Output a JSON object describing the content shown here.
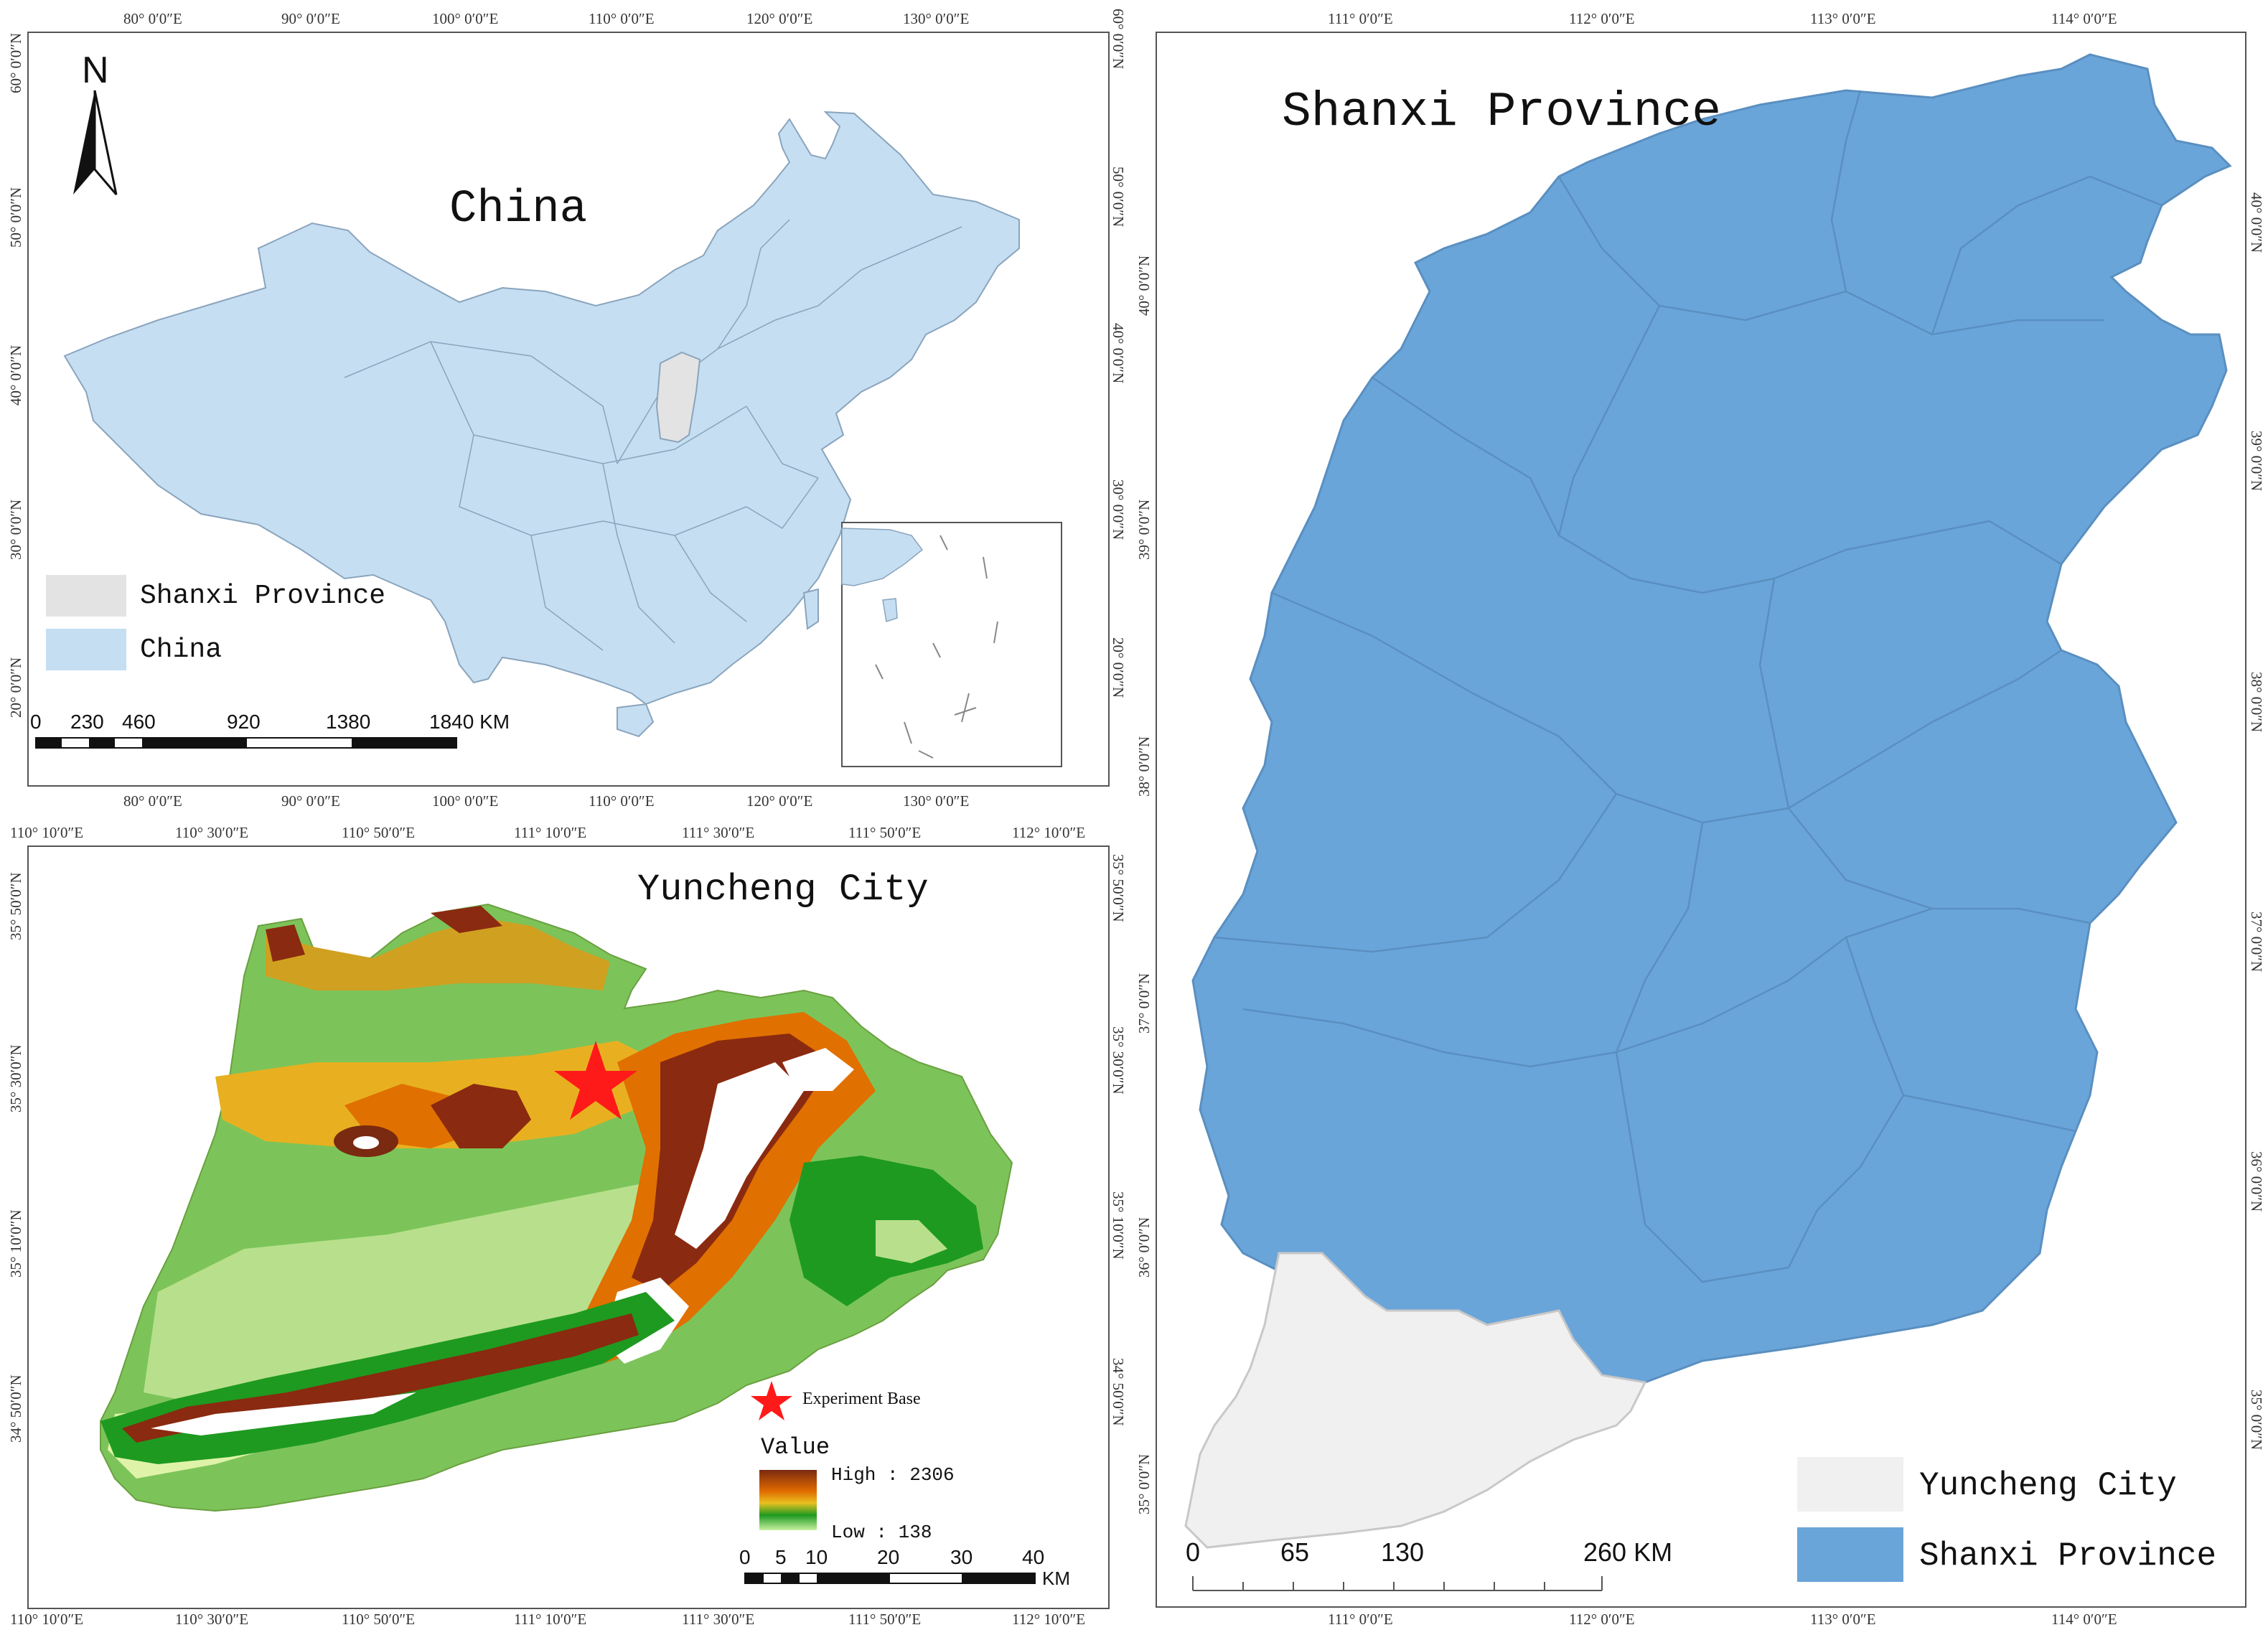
{
  "china_map": {
    "title": "China",
    "north_label": "N",
    "lon_ticks": [
      "80° 0′0″E",
      "90° 0′0″E",
      "100° 0′0″E",
      "110° 0′0″E",
      "120° 0′0″E",
      "130° 0′0″E"
    ],
    "lat_ticks": [
      "60° 0′0″N",
      "50° 0′0″N",
      "40° 0′0″N",
      "30° 0′0″N",
      "20° 0′0″N"
    ],
    "legend": [
      {
        "label": "Shanxi Province",
        "color": "#e3e3e3"
      },
      {
        "label": "China",
        "color": "#c5def2"
      }
    ],
    "scale_labels": [
      "0",
      "230",
      "460",
      "920",
      "1380",
      "1840 KM"
    ]
  },
  "yuncheng_map": {
    "title": "Yuncheng City",
    "lon_ticks": [
      "110° 10′0″E",
      "110° 30′0″E",
      "110° 50′0″E",
      "111° 10′0″E",
      "111° 30′0″E",
      "111° 50′0″E",
      "112° 10′0″E"
    ],
    "lat_ticks": [
      "35° 50′0″N",
      "35° 30′0″N",
      "35° 10′0″N",
      "34° 50′0″N"
    ],
    "marker_label": "Experiment Base",
    "value_title": "Value",
    "value_high": "High : 2306",
    "value_low": "Low : 138",
    "scale_labels": [
      "0",
      "5",
      "10",
      "20",
      "30",
      "40"
    ],
    "scale_unit": "KM"
  },
  "shanxi_map": {
    "title": "Shanxi Province",
    "lon_ticks": [
      "111° 0′0″E",
      "112° 0′0″E",
      "113° 0′0″E",
      "114° 0′0″E"
    ],
    "lat_ticks": [
      "40° 0′0″N",
      "39° 0′0″N",
      "38° 0′0″N",
      "37° 0′0″N",
      "36° 0′0″N",
      "35° 0′0″N"
    ],
    "legend": [
      {
        "label": "Yuncheng City",
        "color": "#f0f0f0"
      },
      {
        "label": "Shanxi Province",
        "color": "#6aa5da"
      }
    ],
    "scale_labels": [
      "0",
      "65",
      "130",
      "260 KM"
    ]
  }
}
